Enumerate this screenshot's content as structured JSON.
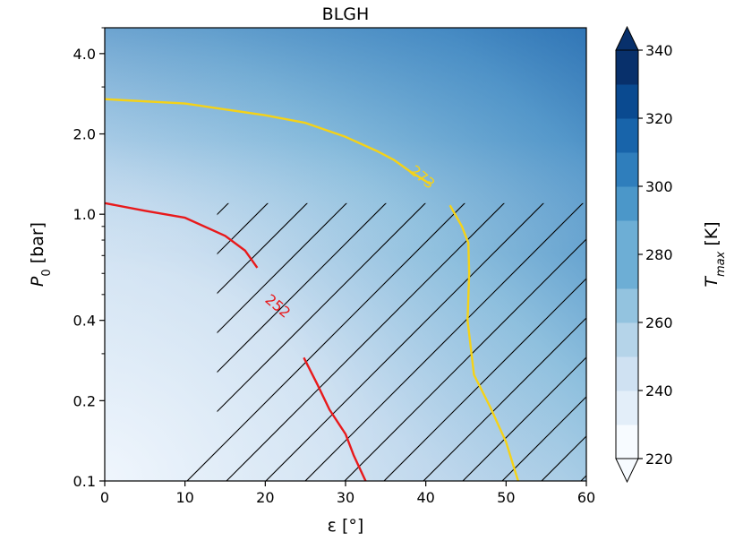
{
  "chart_data": {
    "type": "contour",
    "title": "BLGH",
    "xlabel": "ε [°]",
    "ylabel": "P",
    "ylabel_sub": "0",
    "ylabel_unit": " [bar]",
    "xlim": [
      0,
      60
    ],
    "ylim": [
      0.1,
      5.0
    ],
    "yscale": "log",
    "x_ticks": [
      0,
      10,
      20,
      30,
      40,
      50,
      60
    ],
    "x_tick_labels": [
      "0",
      "10",
      "20",
      "30",
      "40",
      "50",
      "60"
    ],
    "y_ticks": [
      0.1,
      0.2,
      0.4,
      1.0,
      2.0,
      4.0
    ],
    "y_tick_labels": [
      "0.1",
      "0.2",
      "0.4",
      "1.0",
      "2.0",
      "4.0"
    ],
    "colorbar": {
      "label": "T",
      "label_sub": "max",
      "label_unit": " [K]",
      "min": 220,
      "max": 340,
      "ticks": [
        220,
        240,
        260,
        280,
        300,
        320,
        340
      ],
      "tick_labels": [
        "220",
        "240",
        "260",
        "280",
        "300",
        "320",
        "340"
      ],
      "extend": "both",
      "colormap": "Blues"
    },
    "contour_lines": [
      {
        "level_label": "252",
        "color": "#e8191b",
        "segments": [
          [
            [
              0,
              1.1
            ],
            [
              5,
              1.03
            ],
            [
              10,
              0.97
            ],
            [
              15,
              0.83
            ],
            [
              17.5,
              0.73
            ],
            [
              19,
              0.63
            ]
          ],
          [
            [
              24.8,
              0.29
            ],
            [
              26.5,
              0.23
            ],
            [
              28,
              0.185
            ],
            [
              30,
              0.15
            ],
            [
              31,
              0.125
            ],
            [
              32.5,
              0.1
            ]
          ]
        ],
        "label_x": 21.5,
        "label_y": 0.45
      },
      {
        "level_label": "273",
        "color": "#f5d217",
        "segments": [
          [
            [
              0,
              2.7
            ],
            [
              10,
              2.6
            ],
            [
              20,
              2.35
            ],
            [
              25,
              2.2
            ],
            [
              30,
              1.95
            ],
            [
              34,
              1.72
            ],
            [
              36,
              1.6
            ],
            [
              38,
              1.45
            ],
            [
              40.5,
              1.3
            ]
          ],
          [
            [
              43,
              1.08
            ],
            [
              44.5,
              0.9
            ],
            [
              45.3,
              0.78
            ],
            [
              45.4,
              0.6
            ],
            [
              45.2,
              0.4
            ],
            [
              46,
              0.25
            ],
            [
              48,
              0.19
            ],
            [
              50,
              0.14
            ],
            [
              51.5,
              0.1
            ]
          ]
        ],
        "label_x": 39.5,
        "label_y": 1.37
      }
    ],
    "hatch_region": "ε ≥ 14°, P0 ≤ 1.1 bar",
    "hatch_color": "#000000"
  }
}
